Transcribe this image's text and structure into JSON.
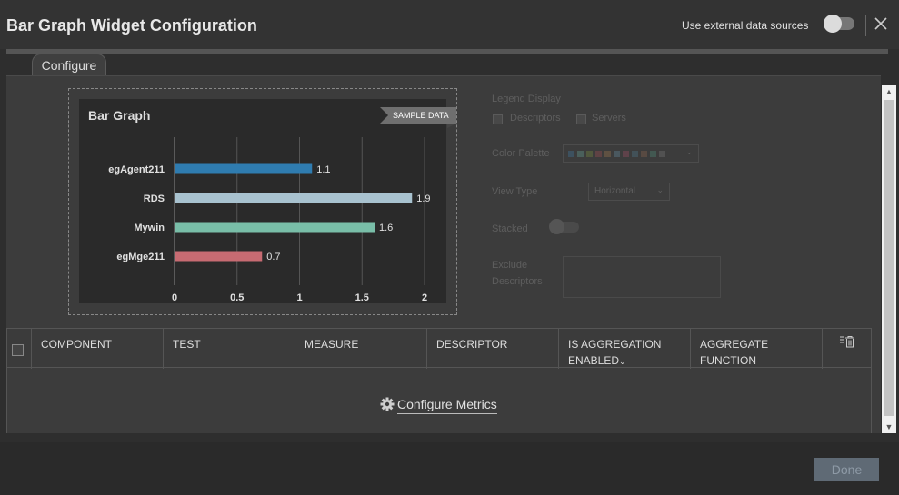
{
  "dialog": {
    "title": "Bar Graph Widget Configuration",
    "external_label": "Use external data sources",
    "external_enabled": false
  },
  "tabs": [
    {
      "label": "Configure",
      "active": true
    }
  ],
  "preview": {
    "title": "Bar Graph",
    "ribbon": "SAMPLE DATA",
    "chart_data": {
      "type": "bar",
      "orientation": "horizontal",
      "title": "Bar Graph",
      "categories": [
        "egAgent211",
        "RDS",
        "Mywin",
        "egMge211"
      ],
      "values": [
        1.1,
        1.9,
        1.6,
        0.7
      ],
      "colors": [
        "#2f7cb0",
        "#a8c2cf",
        "#79bea8",
        "#c76b72"
      ],
      "xlim": [
        0,
        2
      ],
      "xticks": [
        "0",
        "0.5",
        "1",
        "1.5",
        "2"
      ],
      "grid": true
    }
  },
  "settings": {
    "legend_display": "Legend Display",
    "descriptors": "Descriptors",
    "servers": "Servers",
    "color_palette": "Color Palette",
    "palette_colors": [
      "#3d6b8a",
      "#5a8a80",
      "#6b7b3e",
      "#8a4a4e",
      "#8a6a4a",
      "#5a7a8a",
      "#8a4a5a",
      "#4a6a7a",
      "#7a5a4a",
      "#4a7a6a",
      "#6a6a6a"
    ],
    "view_type": "View Type",
    "view_type_value": "Horizontal",
    "stacked": "Stacked",
    "exclude": "Exclude",
    "descriptors_label": "Descriptors"
  },
  "table": {
    "headers": [
      "COMPONENT",
      "TEST",
      "MEASURE",
      "DESCRIPTOR",
      "IS AGGREGATION",
      "ENABLED",
      "AGGREGATE",
      "FUNCTION"
    ],
    "configure_metrics": "Configure Metrics"
  },
  "footer": {
    "done": "Done"
  }
}
